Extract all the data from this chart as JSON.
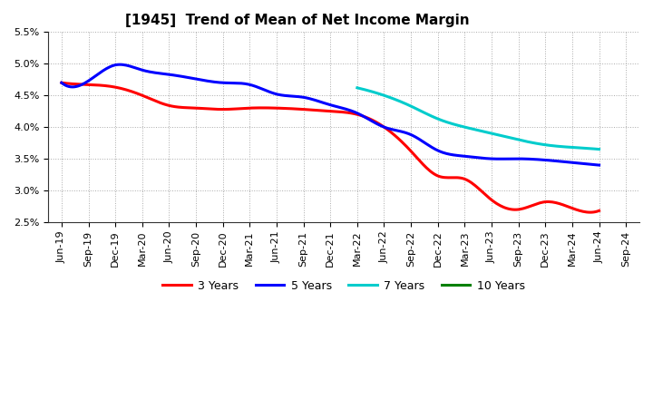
{
  "title": "[1945]  Trend of Mean of Net Income Margin",
  "x_labels": [
    "Jun-19",
    "Sep-19",
    "Dec-19",
    "Mar-20",
    "Jun-20",
    "Sep-20",
    "Dec-20",
    "Mar-21",
    "Jun-21",
    "Sep-21",
    "Dec-21",
    "Mar-22",
    "Jun-22",
    "Sep-22",
    "Dec-22",
    "Mar-23",
    "Jun-23",
    "Sep-23",
    "Dec-23",
    "Mar-24",
    "Jun-24",
    "Sep-24"
  ],
  "ylim": [
    0.025,
    0.055
  ],
  "yticks": [
    0.025,
    0.03,
    0.035,
    0.04,
    0.045,
    0.05,
    0.055
  ],
  "series": {
    "3 Years": {
      "color": "#FF0000",
      "indices": [
        0,
        1,
        2,
        3,
        4,
        5,
        6,
        7,
        8,
        9,
        10,
        11,
        12,
        13,
        14,
        15,
        16,
        17,
        18,
        19,
        20
      ],
      "values": [
        0.047,
        0.0467,
        0.0463,
        0.045,
        0.0434,
        0.043,
        0.0428,
        0.043,
        0.043,
        0.0428,
        0.0425,
        0.042,
        0.04,
        0.0362,
        0.0323,
        0.0318,
        0.0285,
        0.027,
        0.0282,
        0.0272,
        0.0268
      ]
    },
    "5 Years": {
      "color": "#0000FF",
      "indices": [
        0,
        1,
        2,
        3,
        4,
        5,
        6,
        7,
        8,
        9,
        10,
        11,
        12,
        13,
        14,
        15,
        16,
        17,
        18,
        19,
        20
      ],
      "values": [
        0.047,
        0.0473,
        0.0498,
        0.049,
        0.0483,
        0.0476,
        0.047,
        0.0467,
        0.0452,
        0.0447,
        0.0435,
        0.0422,
        0.04,
        0.0388,
        0.0363,
        0.0354,
        0.035,
        0.035,
        0.0348,
        0.0344,
        0.034
      ]
    },
    "7 Years": {
      "color": "#00CCCC",
      "indices": [
        11,
        12,
        13,
        14,
        15,
        16,
        17,
        18,
        19,
        20
      ],
      "values": [
        0.0462,
        0.045,
        0.0433,
        0.0413,
        0.04,
        0.039,
        0.038,
        0.0372,
        0.0368,
        0.0365
      ]
    },
    "10 Years": {
      "color": "#008000",
      "indices": [],
      "values": []
    }
  },
  "legend_entries": [
    "3 Years",
    "5 Years",
    "7 Years",
    "10 Years"
  ],
  "legend_colors": [
    "#FF0000",
    "#0000FF",
    "#00CCCC",
    "#008000"
  ],
  "background_color": "#FFFFFF",
  "plot_bg_color": "#FFFFFF",
  "title_fontsize": 11,
  "tick_fontsize": 8,
  "legend_fontsize": 9
}
